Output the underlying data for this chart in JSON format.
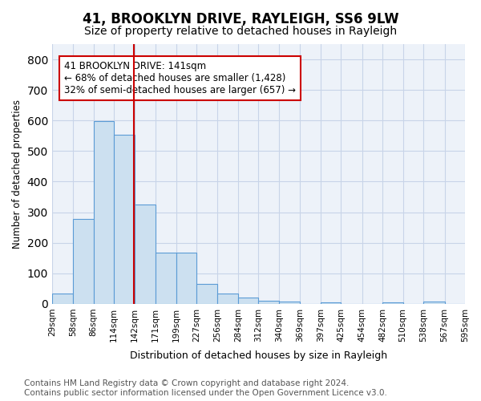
{
  "title": "41, BROOKLYN DRIVE, RAYLEIGH, SS6 9LW",
  "subtitle": "Size of property relative to detached houses in Rayleigh",
  "xlabel": "Distribution of detached houses by size in Rayleigh",
  "ylabel": "Number of detached properties",
  "bar_edges": [
    29,
    58,
    86,
    114,
    142,
    171,
    199,
    227,
    256,
    284,
    312,
    340,
    369,
    397,
    425,
    454,
    482,
    510,
    538,
    567,
    595
  ],
  "bar_heights": [
    33,
    278,
    597,
    554,
    325,
    168,
    168,
    65,
    33,
    20,
    11,
    8,
    0,
    5,
    0,
    0,
    5,
    0,
    8,
    0
  ],
  "bar_color": "#cce0f0",
  "bar_edge_color": "#5b9bd5",
  "vline_x": 141,
  "vline_color": "#cc0000",
  "annotation_text": "41 BROOKLYN DRIVE: 141sqm\n← 68% of detached houses are smaller (1,428)\n32% of semi-detached houses are larger (657) →",
  "ylim": [
    0,
    850
  ],
  "yticks": [
    0,
    100,
    200,
    300,
    400,
    500,
    600,
    700,
    800
  ],
  "tick_labels": [
    "29sqm",
    "58sqm",
    "86sqm",
    "114sqm",
    "142sqm",
    "171sqm",
    "199sqm",
    "227sqm",
    "256sqm",
    "284sqm",
    "312sqm",
    "340sqm",
    "369sqm",
    "397sqm",
    "425sqm",
    "454sqm",
    "482sqm",
    "510sqm",
    "538sqm",
    "567sqm",
    "595sqm"
  ],
  "footer_text": "Contains HM Land Registry data © Crown copyright and database right 2024.\nContains public sector information licensed under the Open Government Licence v3.0.",
  "bg_color": "#edf2f9",
  "grid_color": "#c8d4e8",
  "title_fontsize": 12,
  "subtitle_fontsize": 10,
  "annotation_fontsize": 8.5,
  "footer_fontsize": 7.5
}
